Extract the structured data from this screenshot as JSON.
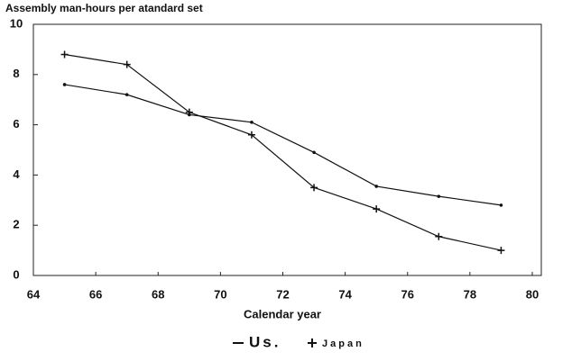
{
  "chart_data": {
    "type": "line",
    "title": "Assembly man-hours per atandard set",
    "x_label": "Calendar year",
    "x": [
      65,
      67,
      69,
      71,
      73,
      75,
      77,
      79
    ],
    "series": [
      {
        "name": "Us.",
        "color": "#111111",
        "marker": "dot",
        "values": [
          7.6,
          7.2,
          6.4,
          6.1,
          4.9,
          3.55,
          3.15,
          2.8
        ]
      },
      {
        "name": "Japan",
        "color": "#111111",
        "marker": "plus",
        "values": [
          8.8,
          8.4,
          6.5,
          5.6,
          3.5,
          2.65,
          1.55,
          1.0
        ]
      }
    ],
    "xlim": [
      64,
      80
    ],
    "xticks": [
      64,
      66,
      68,
      70,
      72,
      74,
      76,
      78,
      80
    ],
    "ylim": [
      0,
      10
    ],
    "yticks": [
      0,
      2,
      4,
      6,
      8,
      10
    ],
    "grid": false,
    "legend": "bottom"
  }
}
